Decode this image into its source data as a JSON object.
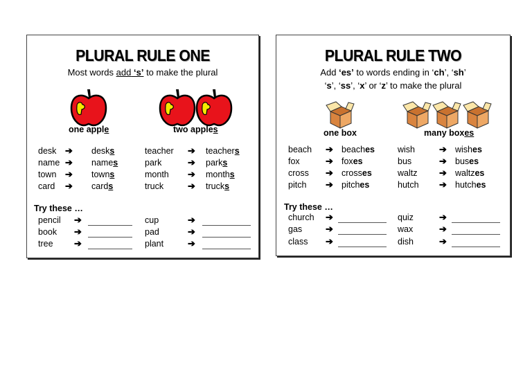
{
  "rule_one": {
    "title": "PLURAL RULE ONE",
    "subtitle_pre": "Most words ",
    "subtitle_add": "add",
    "subtitle_s": "‘s’",
    "subtitle_post": " to make the plural",
    "singular_label": {
      "base": "one appl",
      "tail": "e"
    },
    "plural_label": {
      "base": "two apple",
      "tail": "s"
    },
    "examples": [
      {
        "word": "desk",
        "base": "desk",
        "suffix": "s"
      },
      {
        "word": "name",
        "base": "name",
        "suffix": "s"
      },
      {
        "word": "town",
        "base": "town",
        "suffix": "s"
      },
      {
        "word": "card",
        "base": "card",
        "suffix": "s"
      },
      {
        "word": "teacher",
        "base": "teacher",
        "suffix": "s"
      },
      {
        "word": "park",
        "base": "park",
        "suffix": "s"
      },
      {
        "word": "month",
        "base": "month",
        "suffix": "s"
      },
      {
        "word": "truck",
        "base": "truck",
        "suffix": "s"
      }
    ],
    "try_label": "Try these …",
    "try_words": [
      "pencil",
      "book",
      "tree",
      "cup",
      "pad",
      "plant"
    ]
  },
  "rule_two": {
    "title": "PLURAL RULE TWO",
    "line1": [
      [
        "Add ",
        false
      ],
      [
        "‘es’",
        true
      ],
      [
        " to words ending in ‘",
        false
      ],
      [
        "ch",
        true
      ],
      [
        "’, ‘",
        false
      ],
      [
        "sh",
        true
      ],
      [
        "’",
        false
      ]
    ],
    "line2": [
      [
        "‘",
        false
      ],
      [
        "s",
        true
      ],
      [
        "’, ‘",
        false
      ],
      [
        "ss",
        true
      ],
      [
        "’, ‘",
        false
      ],
      [
        "x",
        true
      ],
      [
        "’ or ‘",
        false
      ],
      [
        "z",
        true
      ],
      [
        "’ to make the plural",
        false
      ]
    ],
    "singular_label": "one box",
    "plural_label": {
      "base": "many box",
      "tail": "es"
    },
    "examples": [
      {
        "word": "beach",
        "base": "beach",
        "suffix": "es"
      },
      {
        "word": "fox",
        "base": "fox",
        "suffix": "es"
      },
      {
        "word": "cross",
        "base": "cross",
        "suffix": "es"
      },
      {
        "word": "pitch",
        "base": "pitch",
        "suffix": "es"
      },
      {
        "word": "wish",
        "base": "wish",
        "suffix": "es"
      },
      {
        "word": "bus",
        "base": "bus",
        "suffix": "es"
      },
      {
        "word": "waltz",
        "base": "waltz",
        "suffix": "es"
      },
      {
        "word": "hutch",
        "base": "hutch",
        "suffix": "es"
      }
    ],
    "try_label": "Try these …",
    "try_words": [
      "church",
      "gas",
      "class",
      "quiz",
      "wax",
      "dish"
    ]
  },
  "arrow_icon": "right-arrow-icon",
  "colors": {
    "apple": "#e8131b",
    "apple_highlight": "#f5e800",
    "box": "#e59a55",
    "box_flap": "#fbe6a8"
  }
}
